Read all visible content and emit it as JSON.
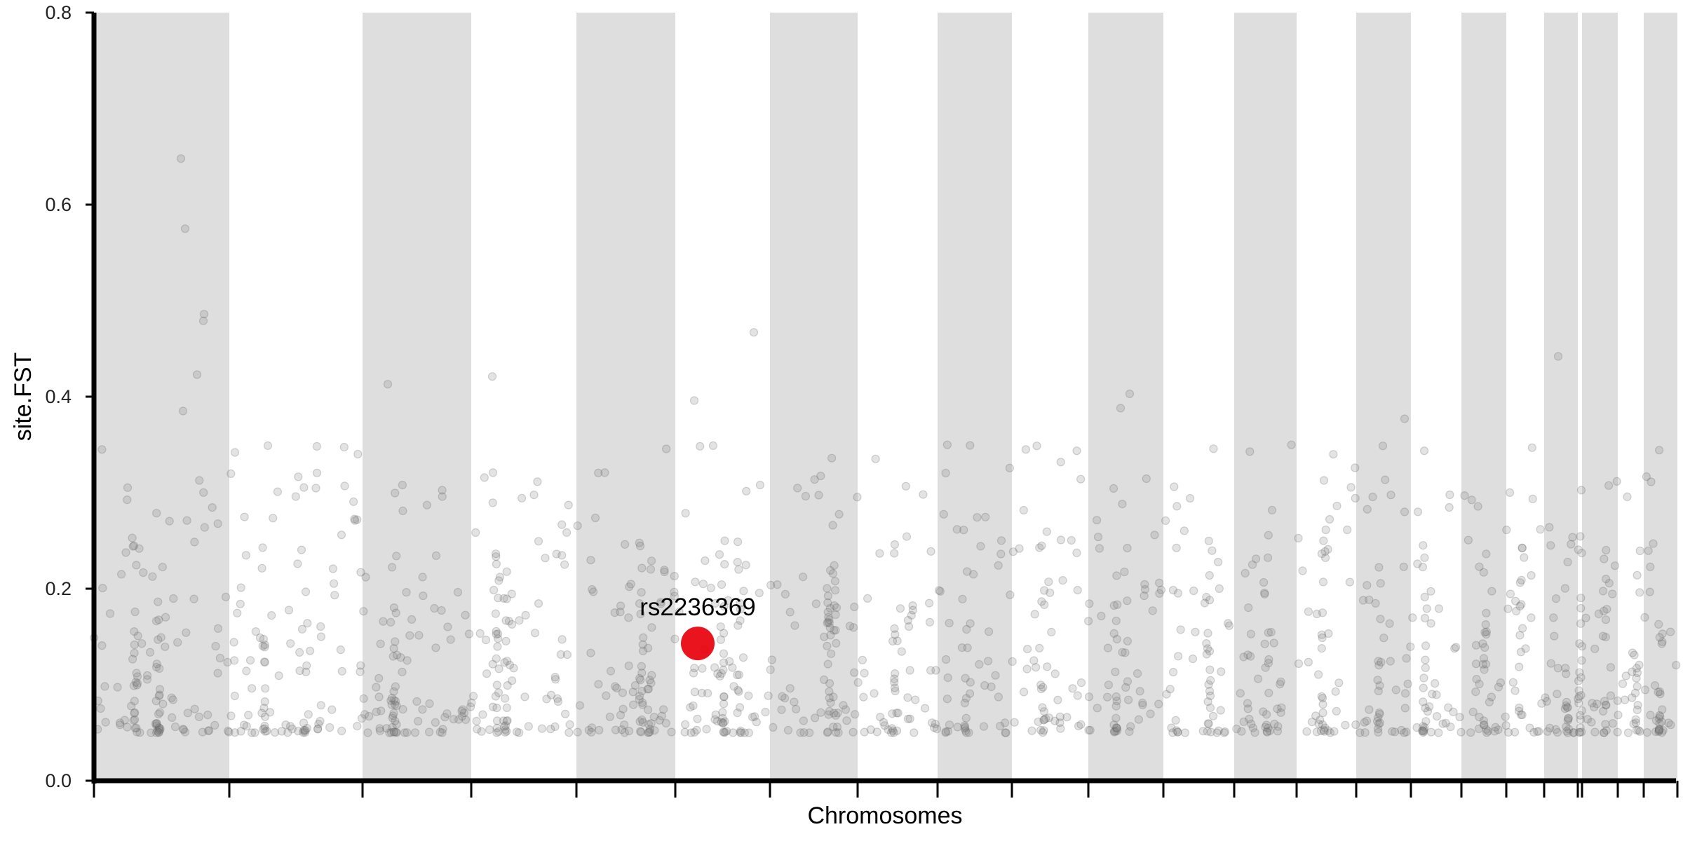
{
  "chart_data": {
    "type": "scatter",
    "title": "",
    "xlabel": "Chromosomes",
    "ylabel": "site.FST",
    "ylim": [
      0,
      0.8
    ],
    "yticks": [
      0.0,
      0.2,
      0.4,
      0.6,
      0.8
    ],
    "ytick_labels": [
      "0.0",
      "0.2",
      "0.4",
      "0.6",
      "0.8"
    ],
    "grid": false,
    "chromosome_count": 24,
    "chromosome_bands_alternating_shade": true,
    "colors": {
      "shade_band": "#dedede",
      "points": "#808080",
      "highlight": "#e8000b",
      "axis": "#000000"
    },
    "highlight": {
      "label": "rs2236369",
      "fst": 0.143
    },
    "notable_points": [
      {
        "fst": 0.648
      },
      {
        "fst": 0.575
      },
      {
        "fst": 0.479
      },
      {
        "fst": 0.486
      },
      {
        "fst": 0.467
      },
      {
        "fst": 0.442
      },
      {
        "fst": 0.423
      },
      {
        "fst": 0.421
      },
      {
        "fst": 0.413
      },
      {
        "fst": 0.403
      },
      {
        "fst": 0.396
      },
      {
        "fst": 0.388
      },
      {
        "fst": 0.385
      },
      {
        "fst": 0.377
      },
      {
        "fst": 0.349
      },
      {
        "fst": 0.342
      }
    ],
    "points_note_fst_range": [
      0.05,
      0.35
    ]
  }
}
